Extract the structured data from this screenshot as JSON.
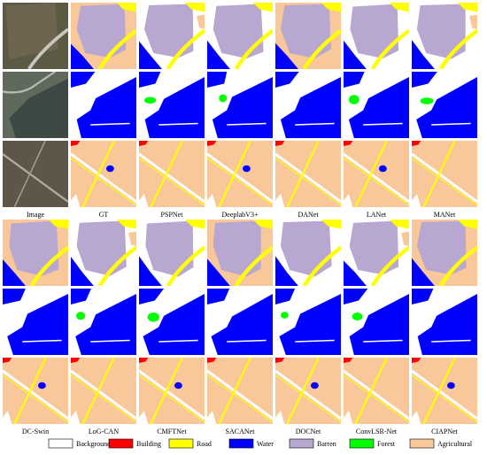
{
  "figure": {
    "top_labels": [
      "Image",
      "GT",
      "PSPNet",
      "DeeplabV3+",
      "DANet",
      "LANet",
      "MANet"
    ],
    "bottom_labels": [
      "DC-Swin",
      "LoG-CAN",
      "CMFTNet",
      "SACANet",
      "DOCNet",
      "ConvLSR-Net",
      "CIAPNet"
    ],
    "legend": [
      {
        "label": "Background",
        "color": "#ffffff"
      },
      {
        "label": "Building",
        "color": "#ff0000"
      },
      {
        "label": "Road",
        "color": "#ffff00"
      },
      {
        "label": "Water",
        "color": "#0000ff"
      },
      {
        "label": "Barren",
        "color": "#b7a7d1"
      },
      {
        "label": "Forest",
        "color": "#00ff00"
      },
      {
        "label": "Agricultural",
        "color": "#f8c89a"
      }
    ]
  }
}
